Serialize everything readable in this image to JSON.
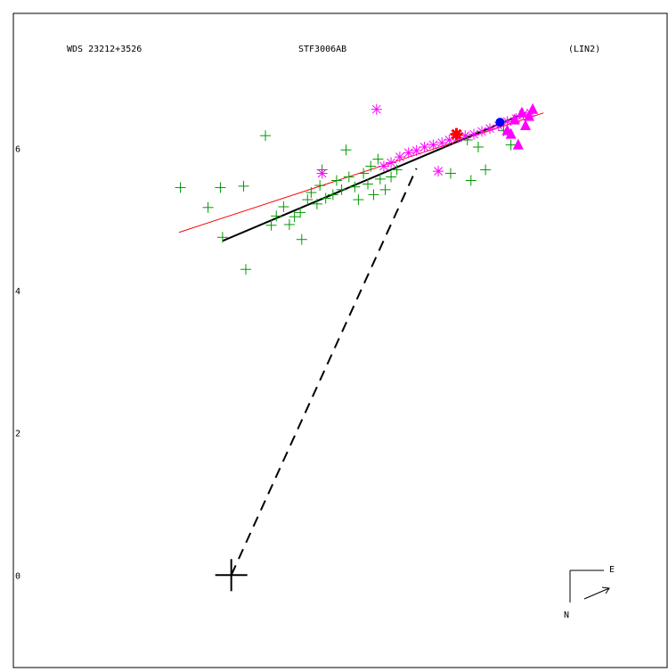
{
  "header": {
    "left": "WDS 23212+3526",
    "center": "STF3006AB",
    "right": "(LIN2)"
  },
  "chart_data": {
    "type": "scatter",
    "title": "",
    "xlabel": "",
    "ylabel": "",
    "xlim": [
      -3.0,
      6.0
    ],
    "ylim": [
      -1.3,
      7.9
    ],
    "y_ticks": [
      "0",
      "2",
      "4",
      "6"
    ],
    "grid": false,
    "primary": [
      0.0,
      0.0
    ],
    "compass": {
      "north": "N",
      "east": "E"
    },
    "colors": {
      "green_obs": "#009900",
      "magenta_obs": "#ff00ff",
      "red_fit": "#ff0000",
      "black_fit": "#000000",
      "current": "#0000ff",
      "ephemeris": "#ff0000"
    },
    "series": [
      {
        "marker": "plus",
        "color": "#009900",
        "points": [
          [
            -0.7,
            5.45
          ],
          [
            -0.32,
            5.17
          ],
          [
            -0.15,
            5.45
          ],
          [
            -0.12,
            4.75
          ],
          [
            0.2,
            4.3
          ],
          [
            0.17,
            5.47
          ],
          [
            0.47,
            6.18
          ],
          [
            0.55,
            4.92
          ],
          [
            0.62,
            5.05
          ],
          [
            0.72,
            5.18
          ],
          [
            0.8,
            4.93
          ],
          [
            0.87,
            5.04
          ],
          [
            0.95,
            5.1
          ],
          [
            0.97,
            4.72
          ],
          [
            1.05,
            5.28
          ],
          [
            1.1,
            5.38
          ],
          [
            1.18,
            5.22
          ],
          [
            1.22,
            5.48
          ],
          [
            1.25,
            5.7
          ],
          [
            1.3,
            5.3
          ],
          [
            1.4,
            5.35
          ],
          [
            1.45,
            5.55
          ],
          [
            1.52,
            5.42
          ],
          [
            1.58,
            5.98
          ],
          [
            1.62,
            5.6
          ],
          [
            1.7,
            5.46
          ],
          [
            1.75,
            5.28
          ],
          [
            1.82,
            5.65
          ],
          [
            1.88,
            5.5
          ],
          [
            1.92,
            5.75
          ],
          [
            1.96,
            5.35
          ],
          [
            2.02,
            5.85
          ],
          [
            2.05,
            5.57
          ],
          [
            2.12,
            5.42
          ],
          [
            2.2,
            5.6
          ],
          [
            2.28,
            5.7
          ],
          [
            3.02,
            5.65
          ],
          [
            3.25,
            6.12
          ],
          [
            3.3,
            5.55
          ],
          [
            3.4,
            6.02
          ],
          [
            3.5,
            5.7
          ],
          [
            3.75,
            6.25
          ],
          [
            3.85,
            6.05
          ]
        ]
      },
      {
        "marker": "asterisk",
        "color": "#ff00ff",
        "points": [
          [
            2.0,
            6.55
          ],
          [
            1.25,
            5.65
          ],
          [
            2.85,
            5.68
          ],
          [
            2.1,
            5.75
          ],
          [
            2.2,
            5.8
          ],
          [
            2.32,
            5.88
          ],
          [
            2.44,
            5.94
          ],
          [
            2.55,
            5.97
          ],
          [
            2.66,
            6.02
          ],
          [
            2.78,
            6.05
          ],
          [
            2.9,
            6.08
          ],
          [
            3.0,
            6.12
          ],
          [
            3.12,
            6.15
          ],
          [
            3.22,
            6.18
          ],
          [
            3.34,
            6.2
          ],
          [
            3.45,
            6.24
          ],
          [
            3.56,
            6.28
          ],
          [
            3.68,
            6.32
          ],
          [
            3.8,
            6.38
          ],
          [
            3.92,
            6.42
          ],
          [
            4.02,
            6.48
          ],
          [
            4.12,
            6.5
          ]
        ]
      },
      {
        "marker": "triangle",
        "color": "#ff00ff",
        "points": [
          [
            3.8,
            6.25
          ],
          [
            3.9,
            6.4
          ],
          [
            4.0,
            6.5
          ],
          [
            4.1,
            6.45
          ],
          [
            3.95,
            6.05
          ],
          [
            4.05,
            6.32
          ],
          [
            4.15,
            6.55
          ],
          [
            3.85,
            6.2
          ]
        ]
      }
    ],
    "orbit_fit_black": [
      [
        -0.12,
        4.7
      ],
      [
        4.05,
        6.5
      ]
    ],
    "orbit_fit_red": [
      [
        -0.72,
        4.82
      ],
      [
        4.3,
        6.5
      ]
    ],
    "current_position": [
      3.7,
      6.37
    ],
    "ephemeris_position": [
      3.1,
      6.2
    ],
    "separation_line": [
      [
        0.0,
        0.0
      ],
      [
        2.55,
        5.72
      ]
    ]
  }
}
